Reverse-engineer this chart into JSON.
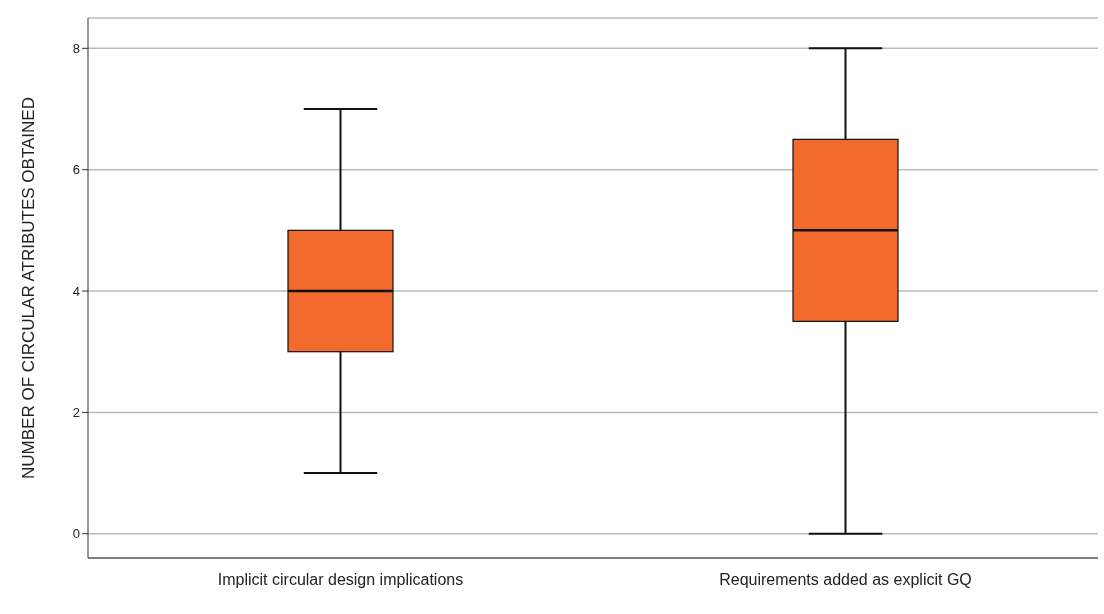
{
  "chart_data": {
    "type": "box",
    "ylabel": "NUMBER OF CIRCULAR ATRIBUTES OBTAINED",
    "categories": [
      "Implicit circular design implications",
      "Requirements added as explicit GQ"
    ],
    "boxes": [
      {
        "low": 1,
        "q1": 3,
        "median": 4,
        "q3": 5,
        "high": 7
      },
      {
        "low": 0,
        "q1": 3.5,
        "median": 5,
        "q3": 6.5,
        "high": 8
      }
    ],
    "color": "#f26a2e",
    "ylim": [
      -0.4,
      8.5
    ],
    "yticks": [
      0,
      2,
      4,
      6,
      8
    ],
    "grid": "y"
  }
}
